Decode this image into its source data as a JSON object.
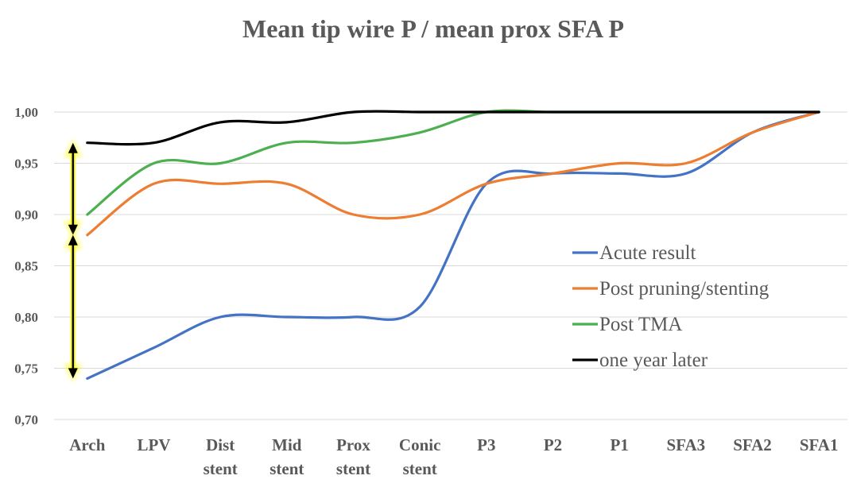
{
  "chart_data": {
    "type": "line",
    "title": "Mean tip wire P / mean prox SFA P",
    "xlabel": "",
    "ylabel": "",
    "categories": [
      [
        "Arch"
      ],
      [
        "LPV"
      ],
      [
        "Dist",
        "stent"
      ],
      [
        "Mid",
        "stent"
      ],
      [
        "Prox",
        "stent"
      ],
      [
        "Conic",
        "stent"
      ],
      [
        "P3"
      ],
      [
        "P2"
      ],
      [
        "P1"
      ],
      [
        "SFA3"
      ],
      [
        "SFA2"
      ],
      [
        "SFA1"
      ]
    ],
    "ylim": [
      0.7,
      1.0
    ],
    "yticks": [
      0.7,
      0.75,
      0.8,
      0.85,
      0.9,
      0.95,
      1.0
    ],
    "ytick_labels": [
      "0,70",
      "0,75",
      "0,80",
      "0,85",
      "0,90",
      "0,95",
      "1,00"
    ],
    "grid": true,
    "legend_position": "right",
    "series": [
      {
        "name": "Acute result",
        "color": "#4472C4",
        "values": [
          0.74,
          0.77,
          0.8,
          0.8,
          0.8,
          0.81,
          0.93,
          0.94,
          0.94,
          0.94,
          0.98,
          1.0
        ]
      },
      {
        "name": "Post pruning/stenting",
        "color": "#ED7D31",
        "values": [
          0.88,
          0.93,
          0.93,
          0.93,
          0.9,
          0.9,
          0.93,
          0.94,
          0.95,
          0.95,
          0.98,
          1.0
        ]
      },
      {
        "name": "Post TMA",
        "color": "#4CAF50",
        "values": [
          0.9,
          0.95,
          0.95,
          0.97,
          0.97,
          0.98,
          1.0,
          1.0,
          1.0,
          1.0,
          1.0,
          1.0
        ]
      },
      {
        "name": "one year later",
        "color": "#000000",
        "values": [
          0.97,
          0.97,
          0.99,
          0.99,
          1.0,
          1.0,
          1.0,
          1.0,
          1.0,
          1.0,
          1.0,
          1.0
        ]
      }
    ],
    "annotations": [
      {
        "type": "double-arrow",
        "x_category": "Arch",
        "from": 0.97,
        "to": 0.88,
        "color": "#000000",
        "highlight": "#FFFF00"
      },
      {
        "type": "double-arrow",
        "x_category": "Arch",
        "from": 0.88,
        "to": 0.74,
        "color": "#000000",
        "highlight": "#FFFF00"
      }
    ]
  }
}
